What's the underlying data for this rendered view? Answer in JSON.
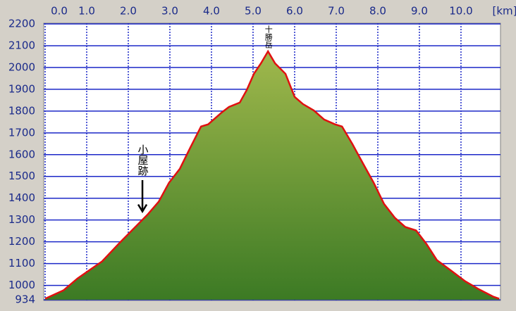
{
  "chart_data": {
    "type": "area",
    "x_unit": "[km]",
    "x": [
      0,
      0.44,
      0.78,
      1.37,
      1.8,
      2.05,
      2.47,
      2.73,
      2.98,
      3.24,
      3.49,
      3.75,
      3.92,
      4.25,
      4.42,
      4.68,
      4.85,
      5.02,
      5.19,
      5.36,
      5.53,
      5.78,
      6.0,
      6.2,
      6.46,
      6.71,
      6.97,
      7.14,
      7.39,
      7.64,
      7.9,
      8.15,
      8.41,
      8.66,
      8.92,
      9.17,
      9.42,
      9.76,
      10.1,
      10.44,
      10.78,
      10.92
    ],
    "values": [
      939,
      977,
      1032,
      1110,
      1197,
      1245,
      1326,
      1384,
      1471,
      1535,
      1632,
      1729,
      1739,
      1794,
      1819,
      1839,
      1897,
      1971,
      2019,
      2074,
      2019,
      1971,
      1865,
      1832,
      1803,
      1761,
      1739,
      1729,
      1648,
      1561,
      1471,
      1374,
      1310,
      1268,
      1252,
      1190,
      1116,
      1068,
      1019,
      981,
      948,
      939
    ],
    "line_color": "#e01010",
    "fill_top": "#a0b84c",
    "fill_bottom": "#3c7a24",
    "grid_color": "#1c28c8",
    "xlim": [
      0,
      10.95
    ],
    "xticks": [
      {
        "value": 0,
        "label": "0.0"
      },
      {
        "value": 1,
        "label": "1.0"
      },
      {
        "value": 2,
        "label": "2.0"
      },
      {
        "value": 3,
        "label": "3.0"
      },
      {
        "value": 4,
        "label": "4.0"
      },
      {
        "value": 5,
        "label": "5.0"
      },
      {
        "value": 6,
        "label": "6.0"
      },
      {
        "value": 7,
        "label": "7.0"
      },
      {
        "value": 8,
        "label": "8.0"
      },
      {
        "value": 9,
        "label": "9.0"
      },
      {
        "value": 10,
        "label": "10.0"
      }
    ],
    "ylim": [
      934,
      2200
    ],
    "yticks": [
      934,
      1000,
      1100,
      1200,
      1300,
      1400,
      1500,
      1600,
      1700,
      1800,
      1900,
      2000,
      2100,
      2200
    ],
    "grid": true,
    "annotations": [
      {
        "text": "十勝岳",
        "x": 5.36,
        "arrow": false
      },
      {
        "text": "小屋跡",
        "x": 2.34,
        "arrow": true
      }
    ]
  }
}
